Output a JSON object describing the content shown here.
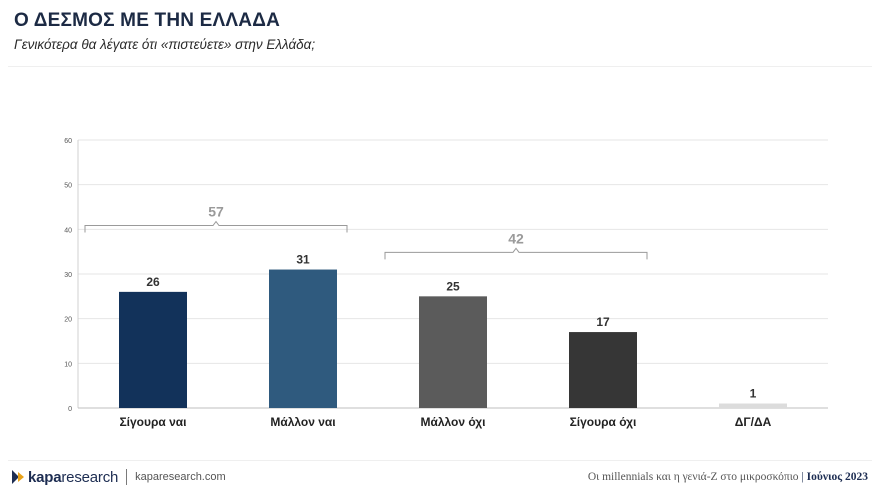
{
  "header": {
    "title": "Ο ΔΕΣΜΟΣ ΜΕ ΤΗΝ ΕΛΛΑΔΑ",
    "subtitle": "Γενικότερα θα λέγατε ότι «πιστεύετε» στην Ελλάδα;"
  },
  "chart_data": {
    "type": "bar",
    "categories": [
      "Σίγουρα ναι",
      "Μάλλον ναι",
      "Μάλλον όχι",
      "Σίγουρα όχι",
      "ΔΓ/ΔΑ"
    ],
    "values": [
      26,
      31,
      25,
      17,
      1
    ],
    "bar_colors": [
      "#12325a",
      "#2f5a7e",
      "#5b5b5b",
      "#363636",
      "#dcdcdc"
    ],
    "ylim": [
      0,
      60
    ],
    "yticks": [
      0,
      10,
      20,
      30,
      40,
      50,
      60
    ],
    "grid": true,
    "groups": [
      {
        "label": "57",
        "from": 0,
        "to": 1
      },
      {
        "label": "42",
        "from": 2,
        "to": 3
      }
    ],
    "group_color": "#9a9a9a"
  },
  "footer": {
    "brand_kapa": "kapa",
    "brand_research": "research",
    "url": "kaparesearch.com",
    "study": "Οι millennials και η γενιά-Z στο μικροσκόπιο",
    "separator": "|",
    "date": "Ιούνιος 2023"
  }
}
